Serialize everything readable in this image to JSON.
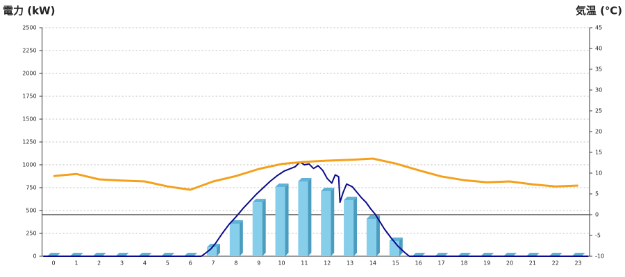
{
  "chart_data": {
    "type": "bar",
    "title_left": "電力 (kW)",
    "title_right": "気温 (℃)",
    "title_left_color": "#1d5fa8",
    "title_right_color": "#f0901c",
    "categories": [
      "0",
      "1",
      "2",
      "3",
      "4",
      "5",
      "6",
      "7",
      "8",
      "9",
      "10",
      "11",
      "12",
      "13",
      "14",
      "15",
      "16",
      "17",
      "18",
      "19",
      "20",
      "21",
      "22",
      "23"
    ],
    "ylim": [
      0,
      2500
    ],
    "yticks": [
      0,
      250,
      500,
      750,
      1000,
      1250,
      1500,
      1750,
      2000,
      2250,
      2500
    ],
    "y2lim": [
      -10,
      45
    ],
    "y2ticks": [
      -10,
      -5,
      0,
      5,
      10,
      15,
      20,
      25,
      30,
      35,
      40,
      45
    ],
    "grid": true,
    "series": [
      {
        "type": "bar",
        "color": "#87ceeb",
        "values": [
          0,
          0,
          0,
          0,
          0,
          0,
          0,
          98,
          356,
          590,
          758,
          818,
          712,
          614,
          409,
          167,
          0,
          0,
          0,
          0,
          0,
          0,
          0,
          0
        ]
      },
      {
        "type": "line",
        "color": "#0a0a8c",
        "x": [
          -0.45,
          6.48,
          6.7,
          6.9,
          7.1,
          7.4,
          7.7,
          8.0,
          8.3,
          8.6,
          8.9,
          9.2,
          9.5,
          9.8,
          10.1,
          10.4,
          10.6,
          10.8,
          11.0,
          11.2,
          11.4,
          11.6,
          11.8,
          12.0,
          12.2,
          12.35,
          12.5,
          12.56,
          12.7,
          12.85,
          13.1,
          13.3,
          13.5,
          13.7,
          13.9,
          14.1,
          14.3,
          14.5,
          14.8,
          15.1,
          15.4,
          15.6,
          23.45
        ],
        "values": [
          0,
          0,
          40,
          80,
          140,
          250,
          350,
          430,
          520,
          600,
          680,
          750,
          820,
          880,
          930,
          960,
          980,
          1030,
          1000,
          1010,
          960,
          990,
          940,
          850,
          800,
          890,
          870,
          590,
          700,
          790,
          760,
          700,
          640,
          590,
          520,
          460,
          380,
          300,
          200,
          110,
          40,
          0,
          0
        ]
      },
      {
        "type": "line",
        "axis": "y2",
        "color": "#f5a01a",
        "values": [
          9.3,
          9.8,
          8.5,
          8.2,
          8,
          6.8,
          6,
          8,
          9.3,
          11,
          12.2,
          12.7,
          13,
          13.2,
          13.5,
          12.3,
          10.7,
          9.2,
          8.3,
          7.8,
          8,
          7.3,
          6.8,
          7
        ]
      }
    ]
  }
}
